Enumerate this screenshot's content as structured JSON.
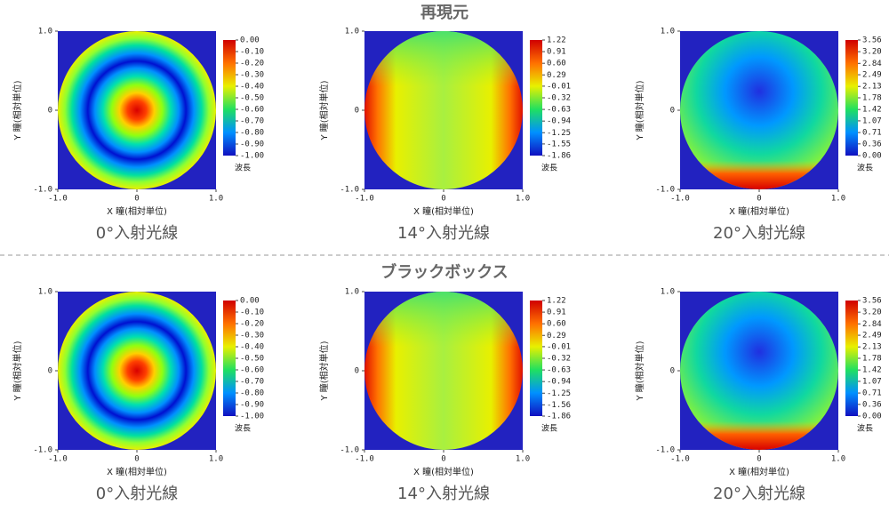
{
  "section_titles": [
    "再現元",
    "ブラックボックス"
  ],
  "chart_data": [
    {
      "type": "heatmap",
      "caption": "0°入射光線",
      "xlabel": "X 瞳(相対単位)",
      "ylabel": "Y 瞳(相対単位)",
      "xlim": [
        -1,
        1
      ],
      "ylim": [
        -1,
        1
      ],
      "xticks": [
        {
          "value": -1,
          "label": "-1.0"
        },
        0,
        {
          "value": 1,
          "label": "1.0"
        }
      ],
      "yticks": [
        {
          "value": -1,
          "label": "-1.0"
        },
        0,
        {
          "value": 1,
          "label": "1.0"
        }
      ],
      "colorbar_label": "波長",
      "clim": [
        -1,
        0
      ],
      "cticks": [
        {
          "value": 0,
          "label": "0.00"
        },
        {
          "value": -0.1,
          "label": "-0.10"
        },
        {
          "value": -0.2,
          "label": "-0.20"
        },
        {
          "value": -0.3,
          "label": "-0.30"
        },
        {
          "value": -0.4,
          "label": "-0.40"
        },
        {
          "value": -0.5,
          "label": "-0.50"
        },
        {
          "value": -0.6,
          "label": "-0.60"
        },
        {
          "value": -0.7,
          "label": "-0.70"
        },
        {
          "value": -0.8,
          "label": "-0.80"
        },
        {
          "value": -0.9,
          "label": "-0.90"
        },
        {
          "value": -1,
          "label": "-1.00"
        }
      ]
    },
    {
      "type": "heatmap",
      "caption": "14°入射光線",
      "xlabel": "X 瞳(相対単位)",
      "ylabel": "Y 瞳(相対単位)",
      "xlim": [
        -1,
        1
      ],
      "ylim": [
        -1,
        1
      ],
      "xticks": [
        {
          "value": -1,
          "label": "-1.0"
        },
        0,
        {
          "value": 1,
          "label": "1.0"
        }
      ],
      "yticks": [
        {
          "value": -1,
          "label": "-1.0"
        },
        0,
        {
          "value": 1,
          "label": "1.0"
        }
      ],
      "colorbar_label": "波長",
      "clim": [
        -1.86,
        1.22
      ],
      "cticks": [
        1.22,
        0.91,
        {
          "value": 0.6,
          "label": "0.60"
        },
        0.29,
        -0.01,
        -0.32,
        -0.63,
        -0.94,
        -1.25,
        -1.55,
        -1.86
      ]
    },
    {
      "type": "heatmap",
      "caption": "20°入射光線",
      "xlabel": "X 瞳(相対単位)",
      "ylabel": "Y 瞳(相対単位)",
      "xlim": [
        -1,
        1
      ],
      "ylim": [
        -1,
        1
      ],
      "xticks": [
        {
          "value": -1,
          "label": "-1.0"
        },
        0,
        {
          "value": 1,
          "label": "1.0"
        }
      ],
      "yticks": [
        {
          "value": -1,
          "label": "-1.0"
        },
        0,
        {
          "value": 1,
          "label": "1.0"
        }
      ],
      "colorbar_label": "波長",
      "clim": [
        0,
        3.56
      ],
      "cticks": [
        3.56,
        {
          "value": 3.2,
          "label": "3.20"
        },
        2.84,
        2.49,
        2.13,
        1.78,
        1.42,
        1.07,
        0.71,
        0.36,
        {
          "value": 0,
          "label": "0.00"
        }
      ]
    },
    {
      "type": "heatmap",
      "caption": "0°入射光線",
      "xlabel": "X 瞳(相対単位)",
      "ylabel": "Y 瞳(相対単位)",
      "xlim": [
        -1,
        1
      ],
      "ylim": [
        -1,
        1
      ],
      "xticks": [
        {
          "value": -1,
          "label": "-1.0"
        },
        0,
        {
          "value": 1,
          "label": "1.0"
        }
      ],
      "yticks": [
        {
          "value": -1,
          "label": "-1.0"
        },
        0,
        {
          "value": 1,
          "label": "1.0"
        }
      ],
      "colorbar_label": "波長",
      "clim": [
        -1,
        0
      ],
      "cticks": [
        {
          "value": 0,
          "label": "0.00"
        },
        {
          "value": -0.1,
          "label": "-0.10"
        },
        {
          "value": -0.2,
          "label": "-0.20"
        },
        {
          "value": -0.3,
          "label": "-0.30"
        },
        {
          "value": -0.4,
          "label": "-0.40"
        },
        {
          "value": -0.5,
          "label": "-0.50"
        },
        {
          "value": -0.6,
          "label": "-0.60"
        },
        {
          "value": -0.7,
          "label": "-0.70"
        },
        {
          "value": -0.8,
          "label": "-0.80"
        },
        {
          "value": -0.9,
          "label": "-0.90"
        },
        {
          "value": -1,
          "label": "-1.00"
        }
      ]
    },
    {
      "type": "heatmap",
      "caption": "14°入射光線",
      "xlabel": "X 瞳(相対単位)",
      "ylabel": "Y 瞳(相対単位)",
      "xlim": [
        -1,
        1
      ],
      "ylim": [
        -1,
        1
      ],
      "xticks": [
        {
          "value": -1,
          "label": "-1.0"
        },
        0,
        {
          "value": 1,
          "label": "1.0"
        }
      ],
      "yticks": [
        {
          "value": -1,
          "label": "-1.0"
        },
        0,
        {
          "value": 1,
          "label": "1.0"
        }
      ],
      "colorbar_label": "波長",
      "clim": [
        -1.86,
        1.22
      ],
      "cticks": [
        1.22,
        0.91,
        {
          "value": 0.6,
          "label": "0.60"
        },
        0.29,
        -0.01,
        -0.32,
        -0.63,
        -0.94,
        -1.25,
        -1.56,
        -1.86
      ]
    },
    {
      "type": "heatmap",
      "caption": "20°入射光線",
      "xlabel": "X 瞳(相対単位)",
      "ylabel": "Y 瞳(相対単位)",
      "xlim": [
        -1,
        1
      ],
      "ylim": [
        -1,
        1
      ],
      "xticks": [
        {
          "value": -1,
          "label": "-1.0"
        },
        0,
        {
          "value": 1,
          "label": "1.0"
        }
      ],
      "yticks": [
        {
          "value": -1,
          "label": "-1.0"
        },
        0,
        {
          "value": 1,
          "label": "1.0"
        }
      ],
      "colorbar_label": "波長",
      "clim": [
        0,
        3.56
      ],
      "cticks": [
        3.56,
        {
          "value": 3.2,
          "label": "3.20"
        },
        2.84,
        2.49,
        2.13,
        1.78,
        1.42,
        1.07,
        0.71,
        0.36,
        {
          "value": 0,
          "label": "0.00"
        }
      ]
    }
  ]
}
